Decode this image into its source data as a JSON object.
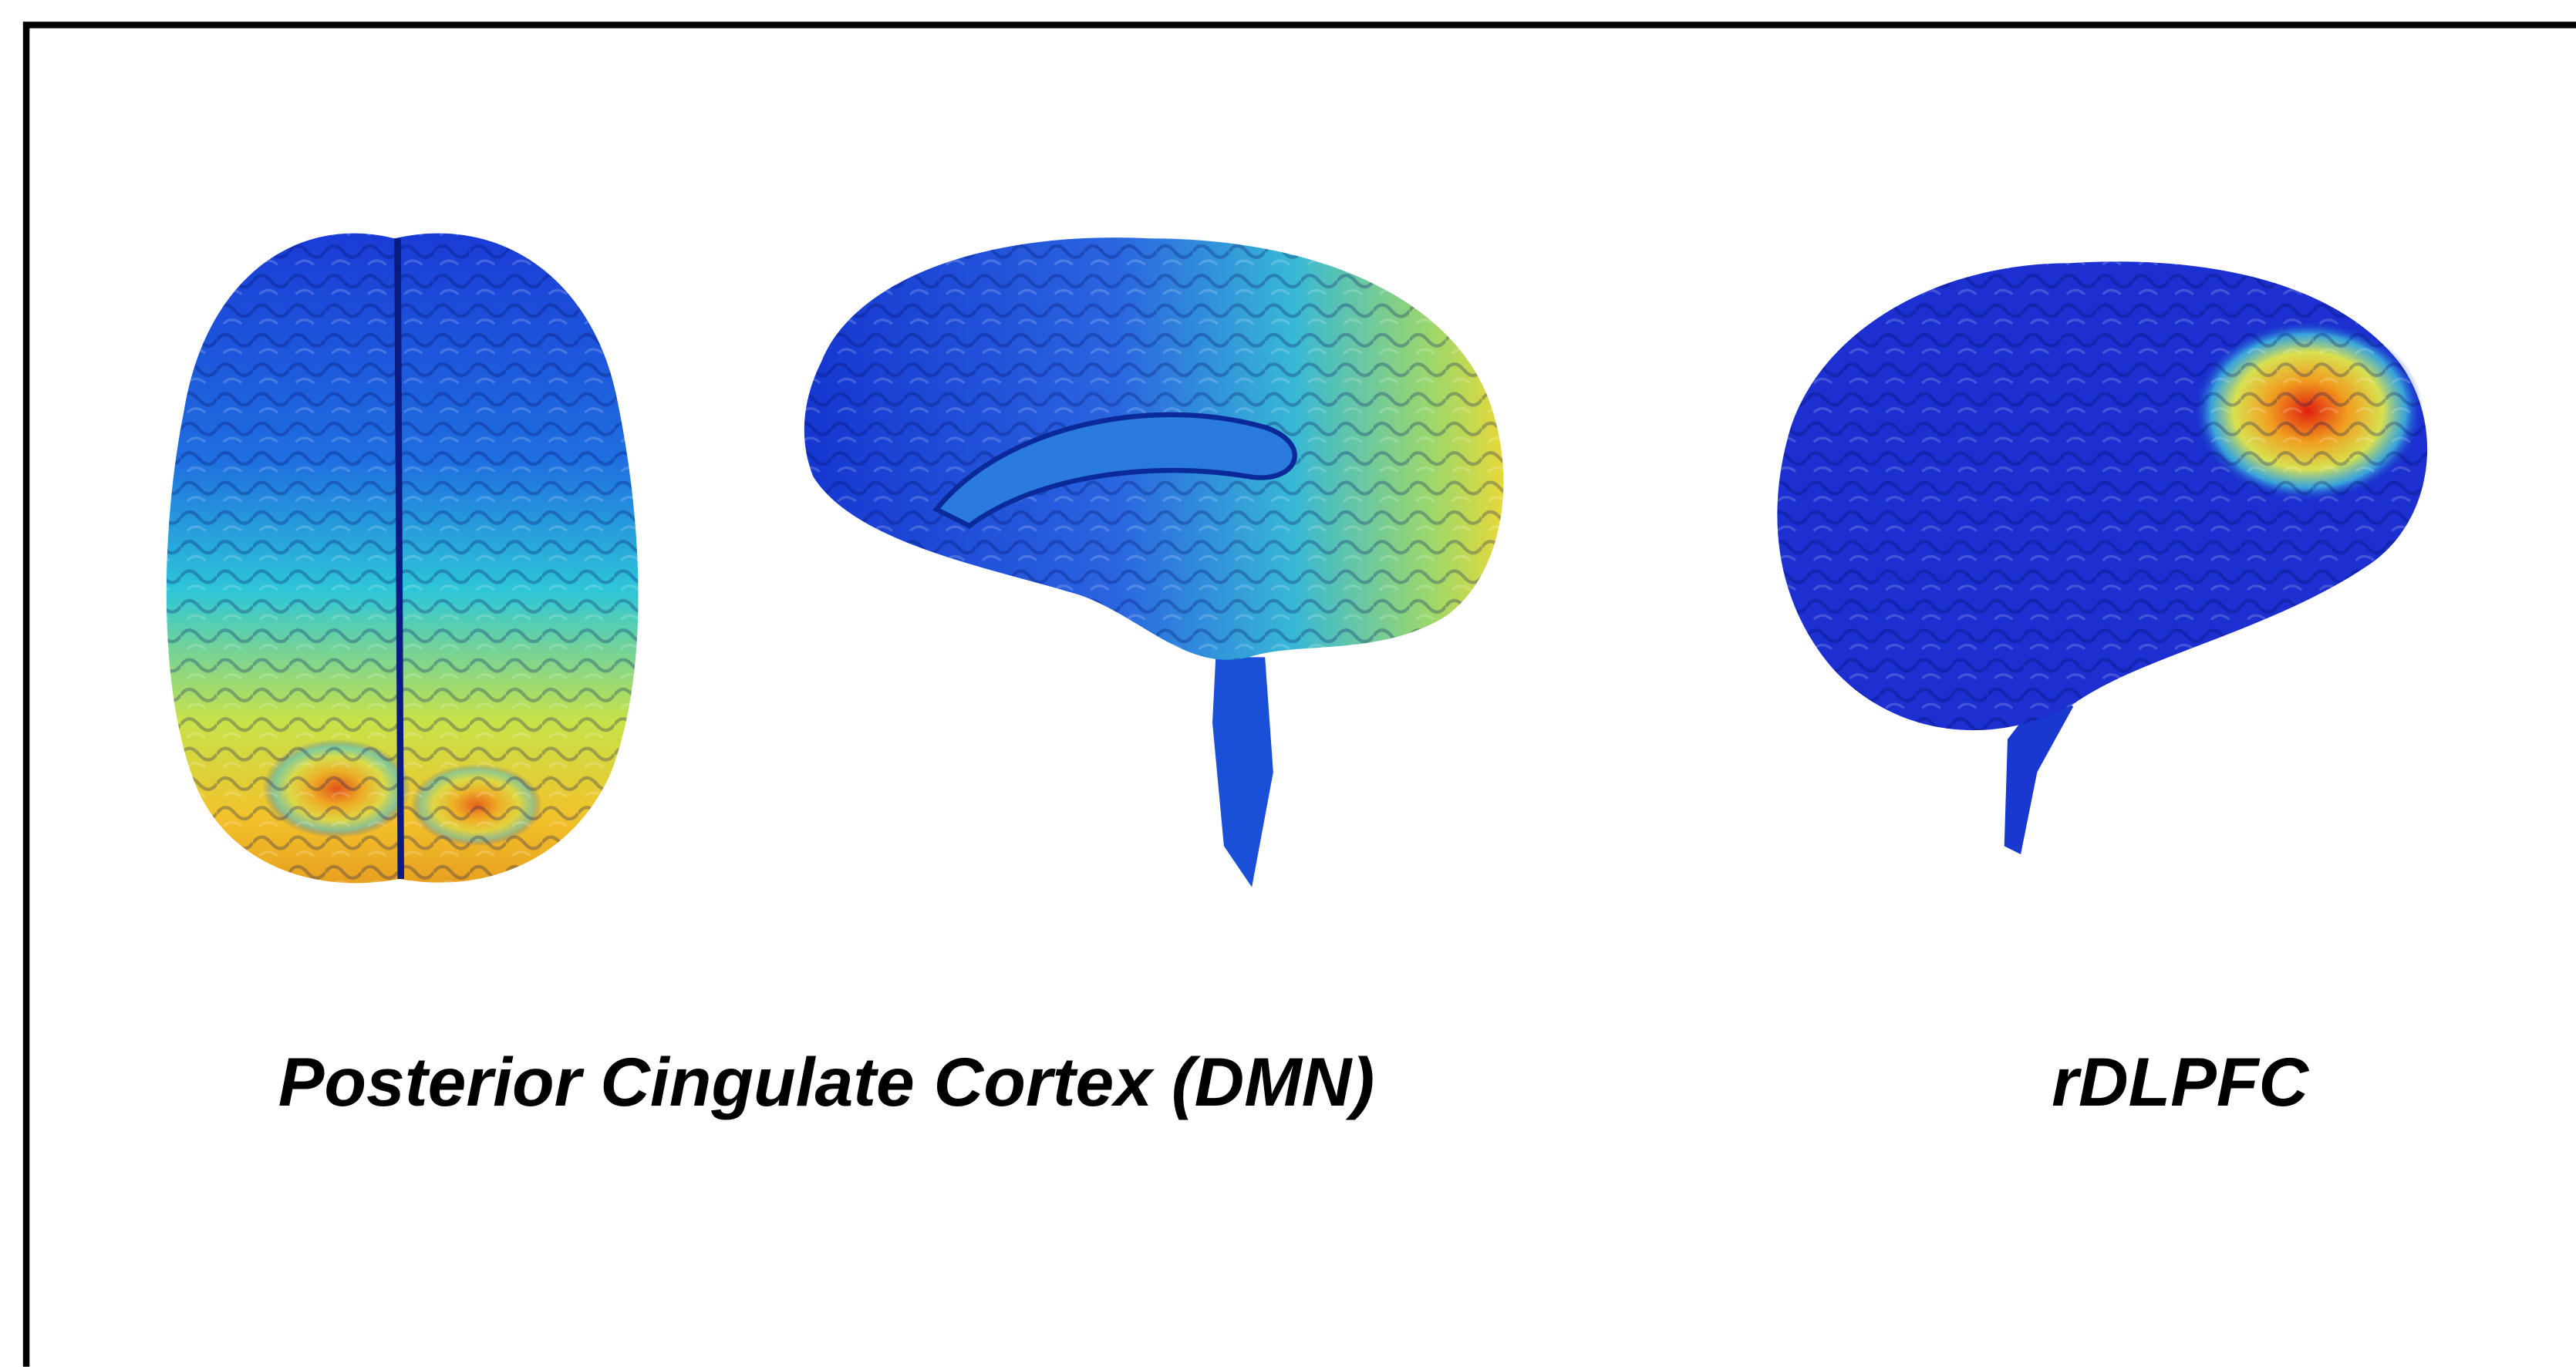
{
  "panels": [
    {
      "label": "Posterior Cingulate Cortex (DMN)"
    },
    {
      "label": "rDLPFC"
    }
  ]
}
